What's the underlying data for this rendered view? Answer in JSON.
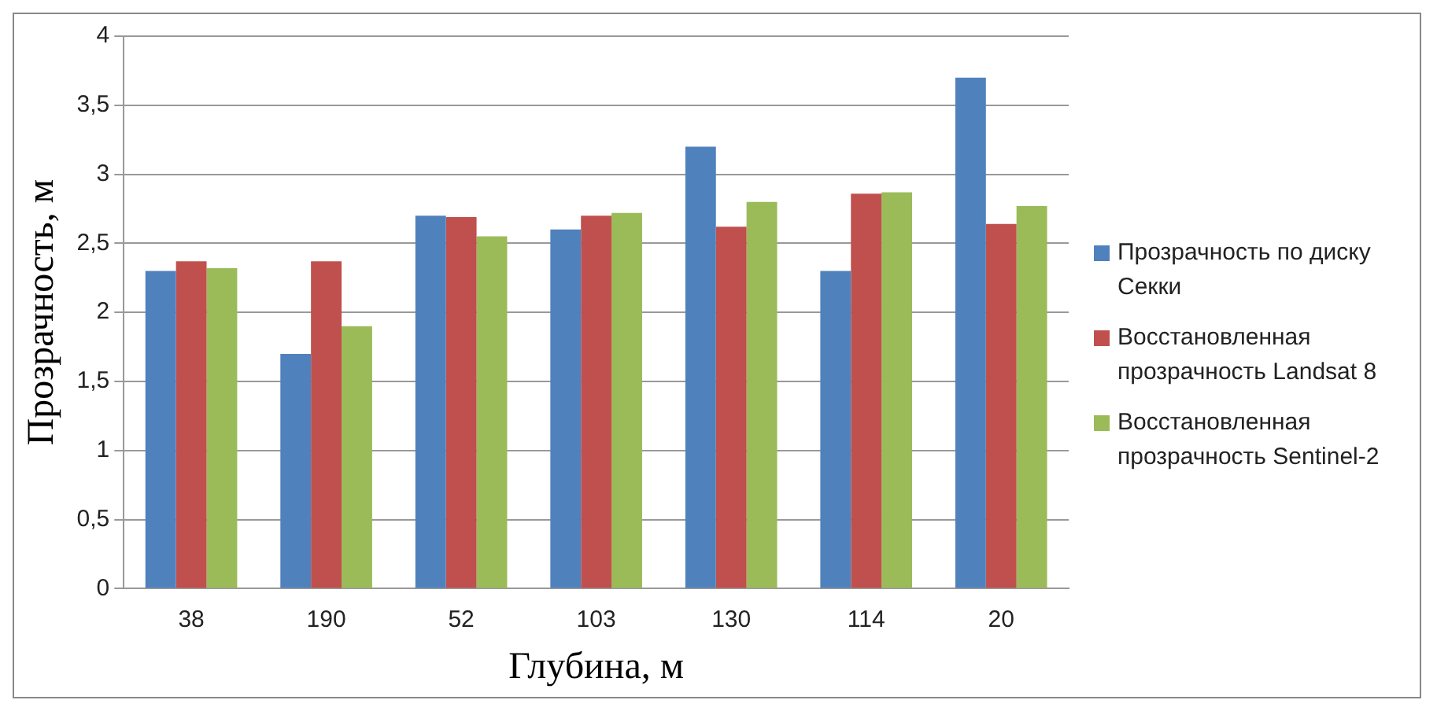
{
  "chart_data": {
    "type": "bar",
    "xlabel": "Глубина, м",
    "ylabel": "Прозрачность, м",
    "categories": [
      "38",
      "190",
      "52",
      "103",
      "130",
      "114",
      "20"
    ],
    "series": [
      {
        "name": "Прозрачность по диску Секки",
        "color": "#4f81bd",
        "values": [
          2.3,
          1.7,
          2.7,
          2.6,
          3.2,
          2.3,
          3.7
        ]
      },
      {
        "name": "Восстановленная прозрачность Landsat 8",
        "color": "#c0504d",
        "values": [
          2.37,
          2.37,
          2.69,
          2.7,
          2.62,
          2.86,
          2.64
        ]
      },
      {
        "name": "Восстановленная прозрачность Sentinel-2",
        "color": "#9bbb59",
        "values": [
          2.32,
          1.9,
          2.55,
          2.72,
          2.8,
          2.87,
          2.77
        ]
      }
    ],
    "ylim": [
      0,
      4
    ],
    "yticks": [
      0,
      {
        "value": 0.5,
        "label": "0,5"
      },
      1,
      {
        "value": 1.5,
        "label": "1,5"
      },
      2,
      {
        "value": 2.5,
        "label": "2,5"
      },
      3,
      {
        "value": 3.5,
        "label": "3,5"
      },
      4
    ],
    "grid": "y",
    "legend": "right"
  }
}
